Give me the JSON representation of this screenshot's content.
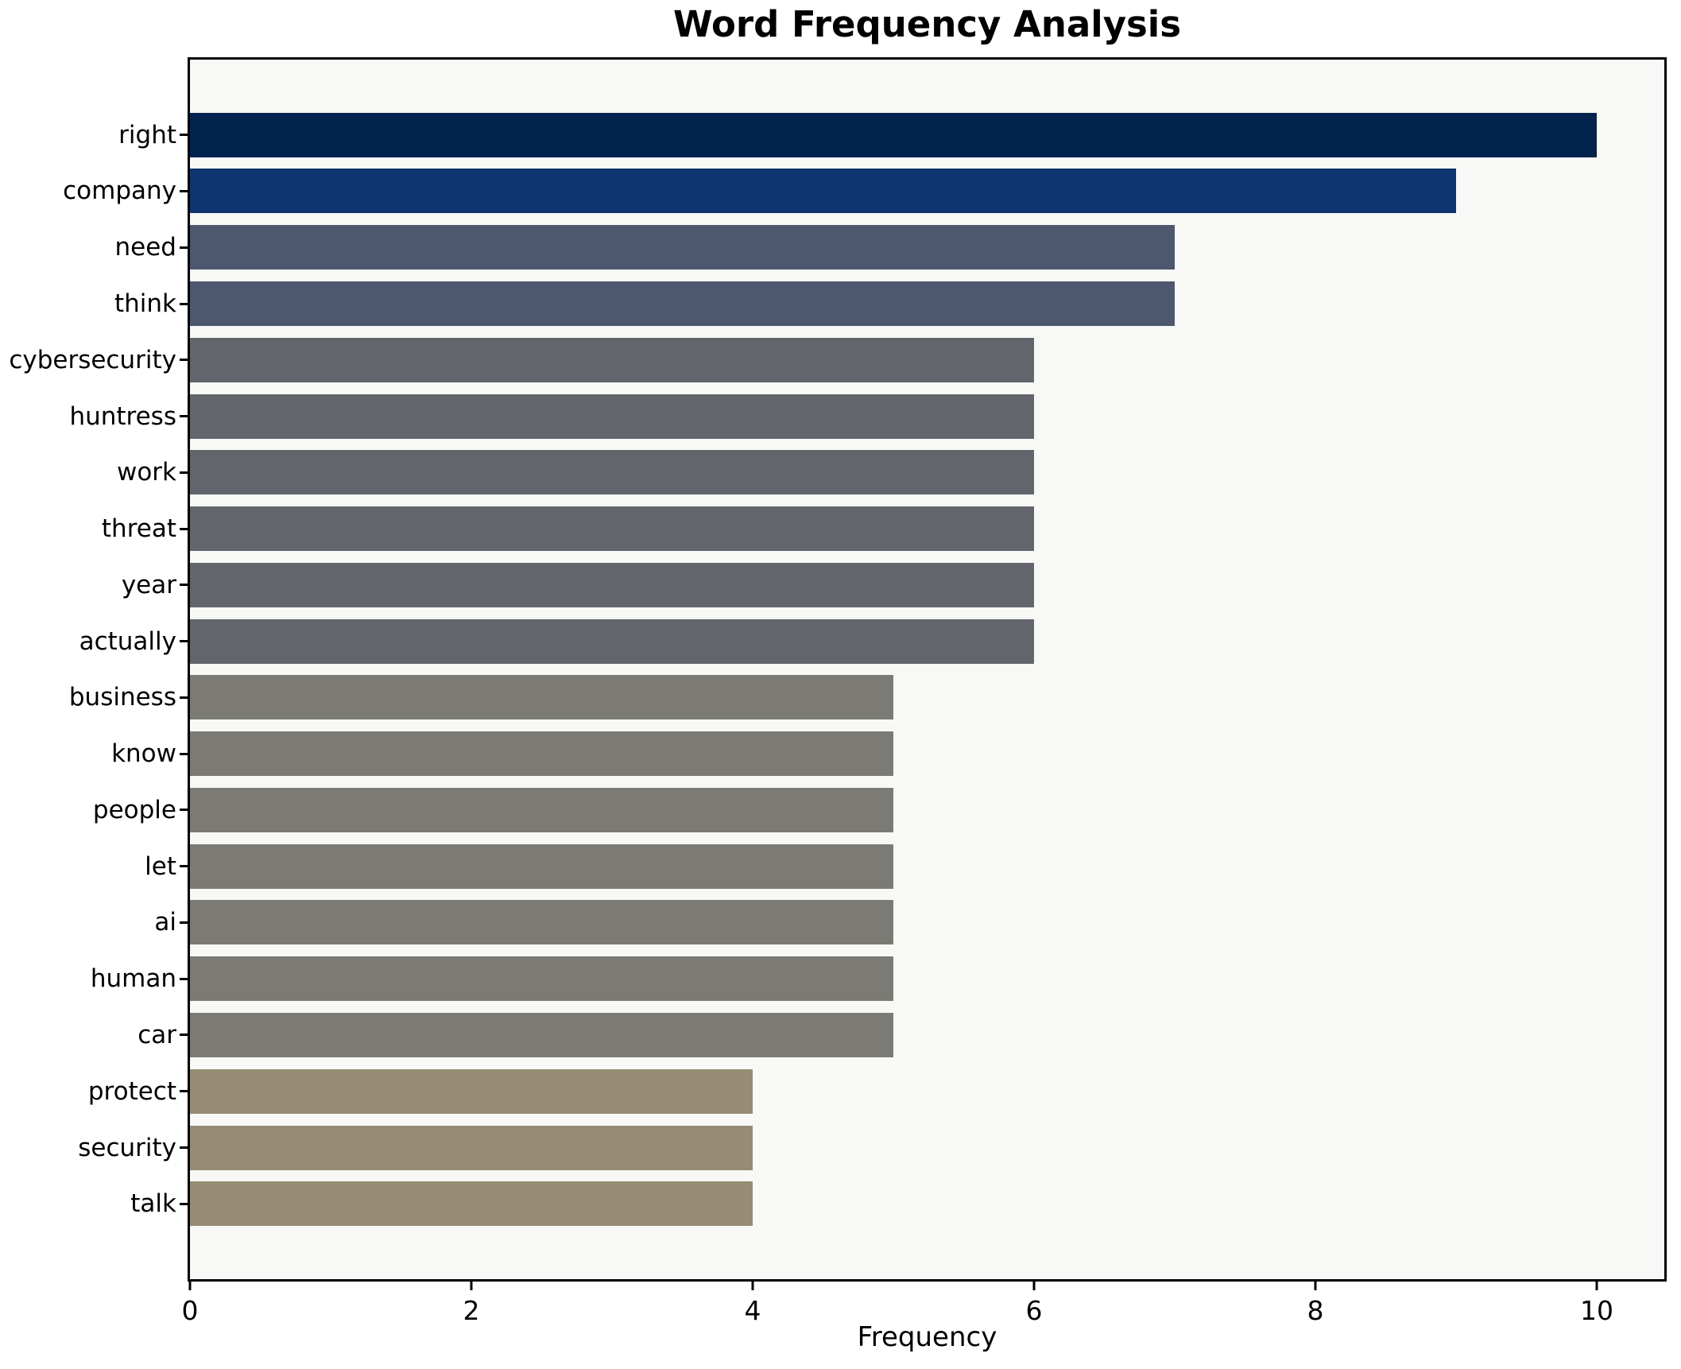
{
  "title": "Word Frequency Analysis",
  "xlabel": "Frequency",
  "colors": {
    "figure_background": "#ffffff",
    "plot_background": "#f8f8f6",
    "spine": "#000000",
    "text": "#000000"
  },
  "chart_data": {
    "type": "bar",
    "orientation": "horizontal",
    "title": "Word Frequency Analysis",
    "xlabel": "Frequency",
    "ylabel": "",
    "categories": [
      "right",
      "company",
      "need",
      "think",
      "cybersecurity",
      "huntress",
      "work",
      "threat",
      "year",
      "actually",
      "business",
      "know",
      "people",
      "let",
      "ai",
      "human",
      "car",
      "protect",
      "security",
      "talk"
    ],
    "values": [
      10,
      9,
      7,
      7,
      6,
      6,
      6,
      6,
      6,
      6,
      5,
      5,
      5,
      5,
      5,
      5,
      5,
      4,
      4,
      4
    ],
    "bar_colors": [
      "#02234d",
      "#0e356f",
      "#4d576e",
      "#4d576e",
      "#63656d",
      "#63656d",
      "#63656d",
      "#63656d",
      "#63656d",
      "#63656d",
      "#7b7a74",
      "#7b7a74",
      "#7b7a74",
      "#7b7a74",
      "#7b7a74",
      "#7b7a74",
      "#7b7a74",
      "#958c73",
      "#958c73",
      "#958c73"
    ],
    "xlim": [
      0,
      10.48
    ],
    "xticks": [
      0,
      2,
      4,
      6,
      8,
      10
    ],
    "grid": false,
    "legend": false,
    "ticks_direction": "out"
  },
  "layout_note": "static matplotlib-style chart, no interactive controls visible"
}
